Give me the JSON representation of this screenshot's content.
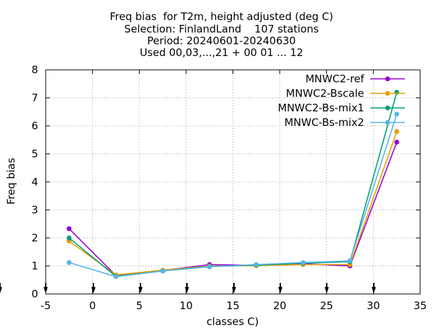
{
  "chart_data": {
    "type": "line",
    "title_lines": [
      "Freq bias  for T2m, height adjusted (deg C)",
      "Selection: FinlandLand    107 stations",
      "Period: 20240601-20240630",
      "Used 00,03,...,21 + 00 01 ... 12"
    ],
    "xlabel": "classes C)",
    "ylabel": "Freq bias",
    "xlim": [
      -5,
      35
    ],
    "ylim": [
      0,
      8
    ],
    "xticks": [
      -5,
      0,
      5,
      10,
      15,
      20,
      25,
      30,
      35
    ],
    "yticks": [
      0,
      1,
      2,
      3,
      4,
      5,
      6,
      7,
      8
    ],
    "grid": true,
    "legend_position": "top-right",
    "x": [
      -2.5,
      2.5,
      7.5,
      12.5,
      17.5,
      22.5,
      27.5,
      32.5
    ],
    "series": [
      {
        "name": "MNWC2-ref",
        "color": "#9400d3",
        "values": [
          2.33,
          0.66,
          0.84,
          1.05,
          1.02,
          1.08,
          1.0,
          5.42
        ]
      },
      {
        "name": "MNWC2-Bscale",
        "color": "#e69f00",
        "values": [
          1.89,
          0.68,
          0.85,
          1.0,
          1.01,
          1.05,
          1.05,
          5.8
        ]
      },
      {
        "name": "MNWC2-Bs-mix1",
        "color": "#009e73",
        "values": [
          2.0,
          0.63,
          0.82,
          0.98,
          1.03,
          1.1,
          1.15,
          7.2
        ]
      },
      {
        "name": "MNWC-Bs-mix2",
        "color": "#56b4e9",
        "values": [
          1.12,
          0.62,
          0.82,
          0.97,
          1.05,
          1.12,
          1.18,
          6.42
        ]
      }
    ]
  }
}
